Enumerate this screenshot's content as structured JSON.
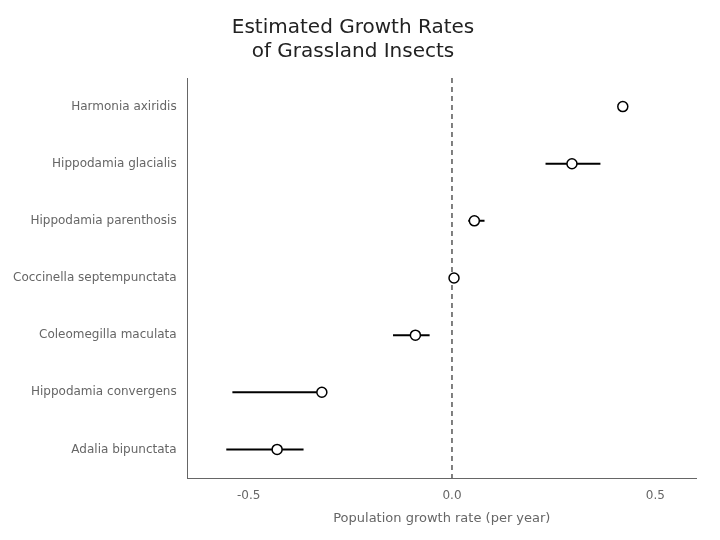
{
  "chart_data": {
    "type": "dot",
    "title": [
      "Estimated Growth Rates",
      "of Grassland Insects"
    ],
    "x_label": "Population growth rate (per year)",
    "categories": [
      "Harmonia axiridis",
      "Hippodamia glacialis",
      "Hippodamia parenthosis",
      "Coccinella septempunctata",
      "Coleomegilla maculata",
      "Hippodamia convergens",
      "Adalia bipunctata"
    ],
    "values": [
      0.42,
      0.295,
      0.055,
      0.005,
      -0.09,
      -0.32,
      -0.43
    ],
    "error_low": [
      0.0,
      0.065,
      0.015,
      0.008,
      0.055,
      0.22,
      0.125
    ],
    "error_high": [
      0.0,
      0.07,
      0.025,
      0.008,
      0.035,
      0.0,
      0.065
    ],
    "xlim": [
      -0.65,
      0.6
    ],
    "xticks": [
      {
        "value": -0.5,
        "label": "-0.5"
      },
      {
        "value": 0,
        "label": "0.0"
      },
      {
        "value": 0.5,
        "label": "0.5"
      }
    ],
    "reference_x": 0,
    "color": "#000000",
    "marker": "circle",
    "grid": false
  }
}
